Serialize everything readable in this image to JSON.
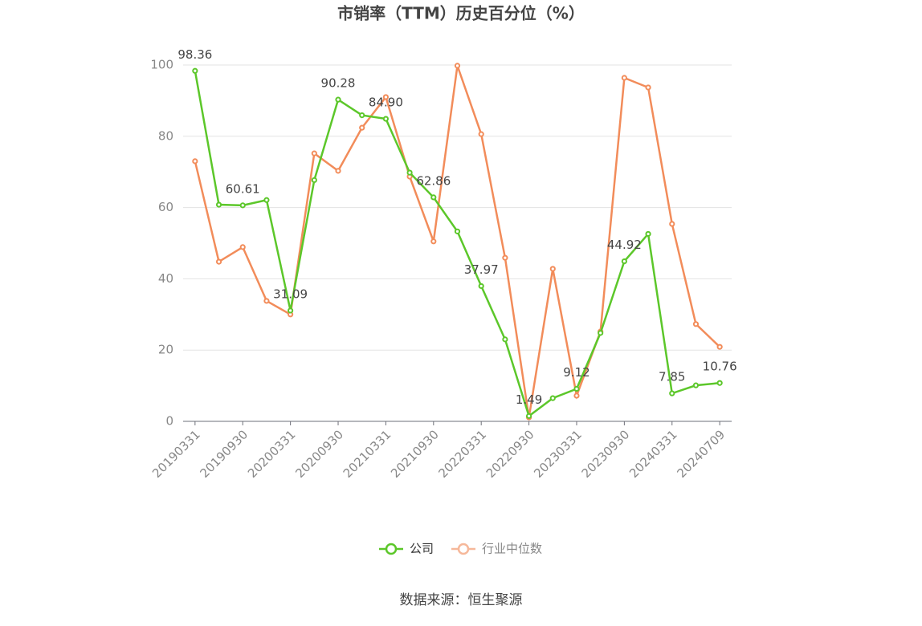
{
  "chart_data": {
    "type": "line",
    "title": "市销率（TTM）历史百分位（%）",
    "source": "数据来源：恒生聚源",
    "categories": [
      "20190331",
      null,
      "20190930",
      null,
      "20200331",
      null,
      "20200930",
      null,
      "20210331",
      null,
      "20210930",
      null,
      "20220331",
      null,
      "20220930",
      null,
      "20230331",
      null,
      "20230930",
      null,
      "20240331",
      null,
      "20240709"
    ],
    "series": [
      {
        "name": "公司",
        "color": "#5cc72a",
        "values": [
          98.36,
          60.8,
          60.61,
          62.1,
          31.09,
          67.7,
          90.28,
          85.9,
          84.9,
          69.8,
          62.86,
          53.3,
          37.97,
          23.0,
          1.49,
          6.5,
          9.12,
          24.8,
          44.92,
          52.6,
          7.85,
          10.1,
          10.76
        ],
        "value_labels": [
          "98.36",
          null,
          "60.61",
          null,
          "31.09",
          null,
          "90.28",
          null,
          "84.90",
          null,
          "62.86",
          null,
          "37.97",
          null,
          "1.49",
          null,
          "9.12",
          null,
          "44.92",
          null,
          "7.85",
          null,
          "10.76"
        ]
      },
      {
        "name": "行业中位数",
        "color": "#f28c5a",
        "values": [
          73.0,
          44.8,
          48.9,
          33.8,
          30.0,
          75.2,
          70.3,
          82.4,
          91.0,
          68.7,
          50.5,
          99.8,
          80.6,
          45.9,
          1.1,
          42.8,
          7.2,
          25.2,
          96.4,
          93.7,
          55.4,
          27.3,
          20.9
        ]
      }
    ],
    "ylim": [
      0,
      100
    ],
    "yticks": [
      0,
      20,
      40,
      60,
      80,
      100
    ],
    "grid": true
  }
}
